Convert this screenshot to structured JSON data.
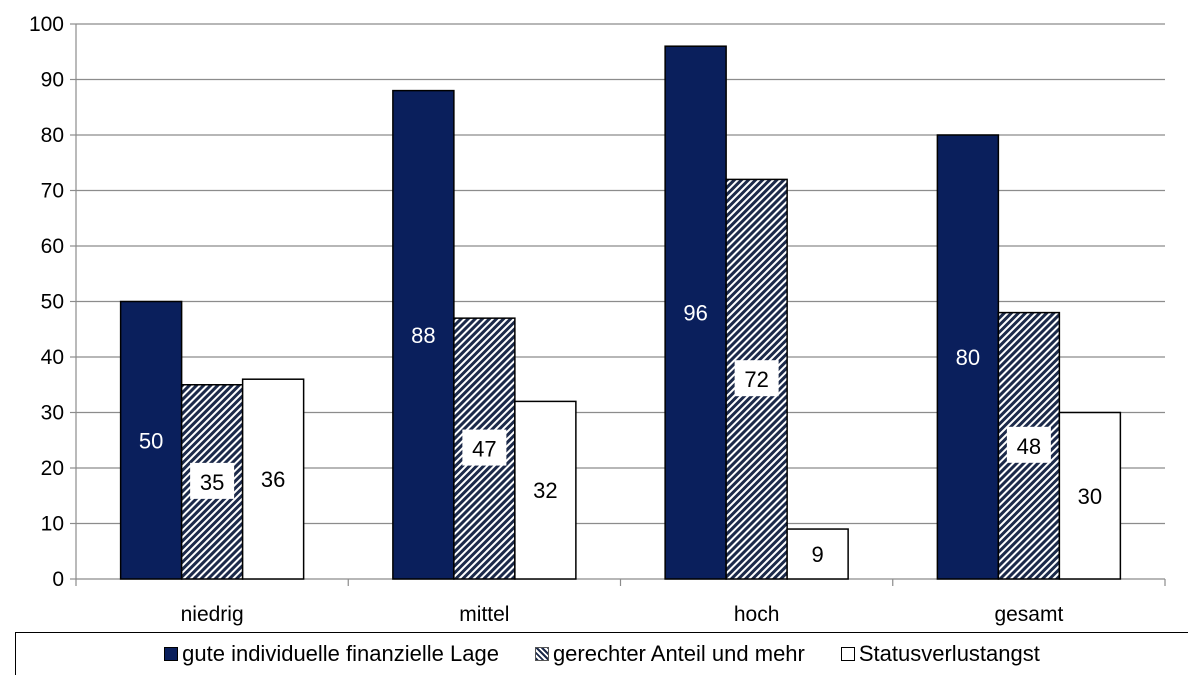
{
  "chart_data": {
    "type": "bar",
    "categories": [
      "niedrig",
      "mittel",
      "hoch",
      "gesamt"
    ],
    "series": [
      {
        "name": "gute individuelle finanzielle Lage",
        "values": [
          50,
          88,
          96,
          80
        ],
        "color": "#0a1f5c",
        "pattern": "solid",
        "label_color": "#ffffff"
      },
      {
        "name": "gerechter Anteil und mehr",
        "values": [
          35,
          47,
          72,
          48
        ],
        "color": "#1c2a4a",
        "pattern": "diagonal-hatch",
        "label_color": "#000000"
      },
      {
        "name": "Statusverlustangst",
        "values": [
          36,
          32,
          9,
          30
        ],
        "color": "#ffffff",
        "pattern": "solid",
        "label_color": "#000000"
      }
    ],
    "ylim": [
      0,
      100
    ],
    "yticks": [
      0,
      10,
      20,
      30,
      40,
      50,
      60,
      70,
      80,
      90,
      100
    ],
    "grid": true,
    "legend_position": "bottom",
    "title": "",
    "xlabel": "",
    "ylabel": ""
  }
}
